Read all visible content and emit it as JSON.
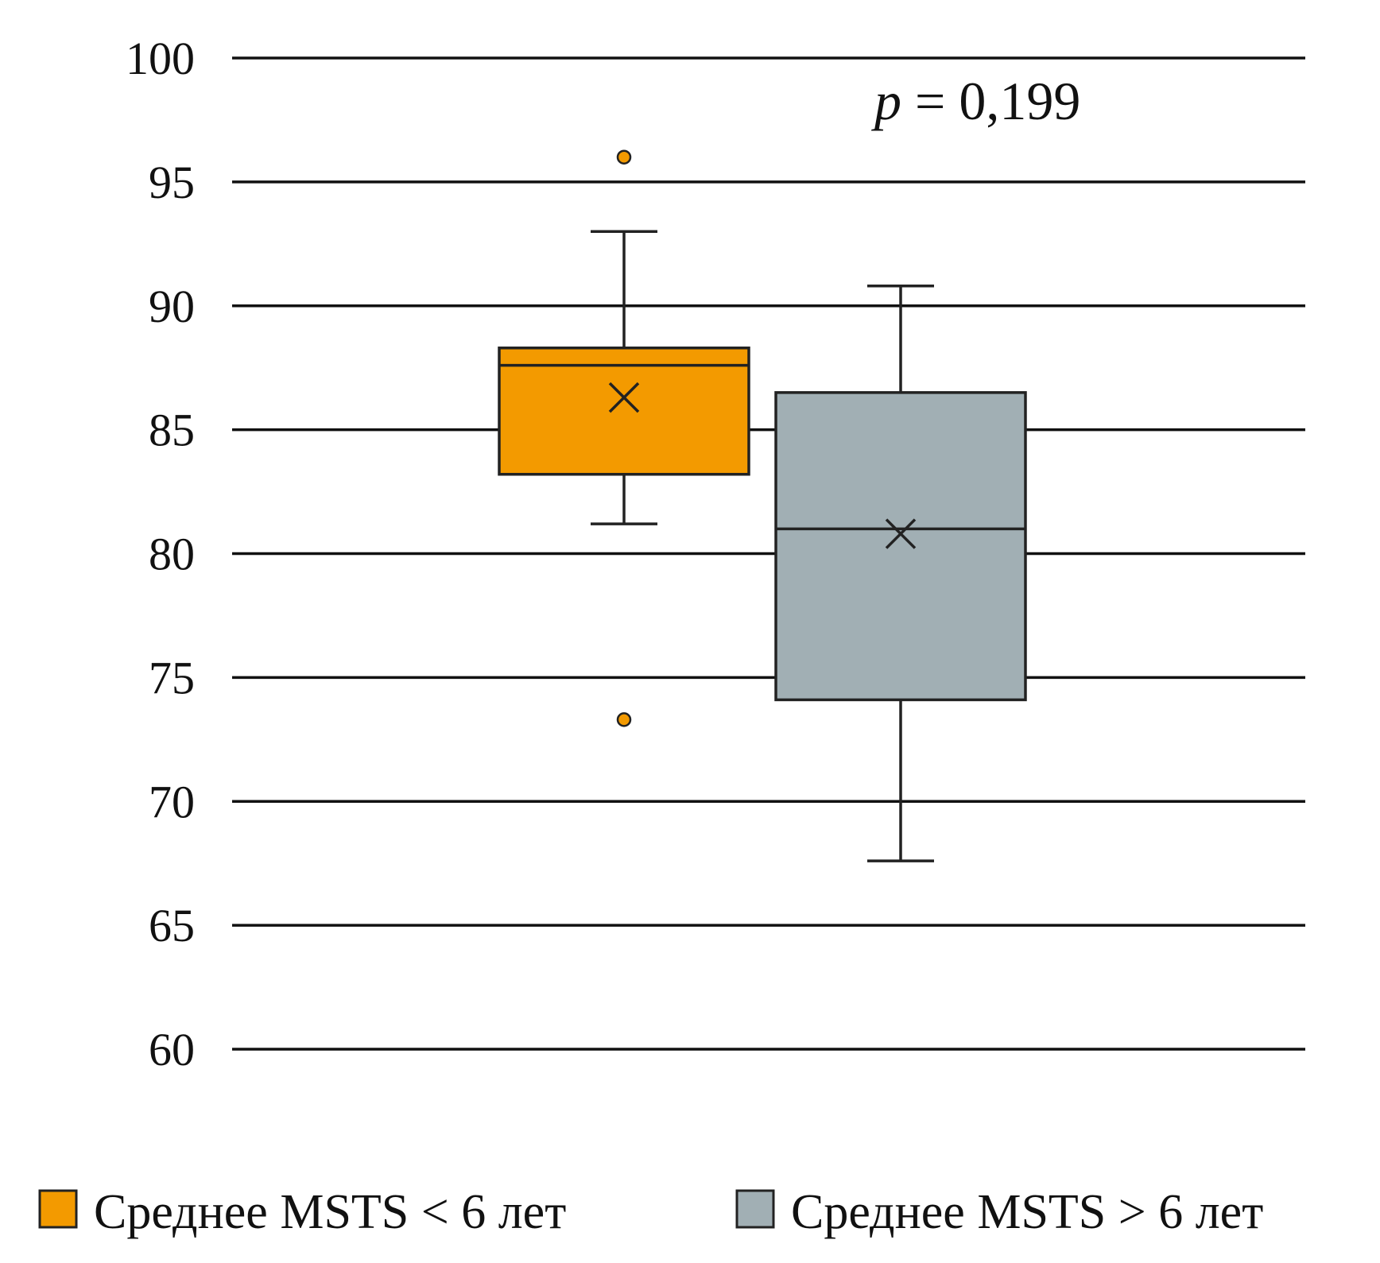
{
  "chart_data": {
    "type": "boxplot",
    "ylim": [
      60,
      100
    ],
    "yticks": [
      "100",
      "95",
      "90",
      "85",
      "80",
      "75",
      "70",
      "65",
      "60"
    ],
    "grid": true,
    "legend_position": "bottom",
    "annotation": {
      "p_symbol": "p",
      "p_rest": " = 0,199"
    },
    "series": [
      {
        "name": "Среднее MSTS < 6 лет",
        "color": "#f39a00",
        "whisker_low": 81.2,
        "q1": 83.2,
        "median": 87.6,
        "q3": 88.3,
        "whisker_high": 93.0,
        "mean": 86.3,
        "outliers": [
          96.0,
          73.3
        ]
      },
      {
        "name": "Среднее MSTS > 6 лет",
        "color": "#a1afb4",
        "whisker_low": 67.6,
        "q1": 74.1,
        "median": 81.0,
        "q3": 86.5,
        "whisker_high": 90.8,
        "mean": 80.8,
        "outliers": []
      }
    ]
  }
}
